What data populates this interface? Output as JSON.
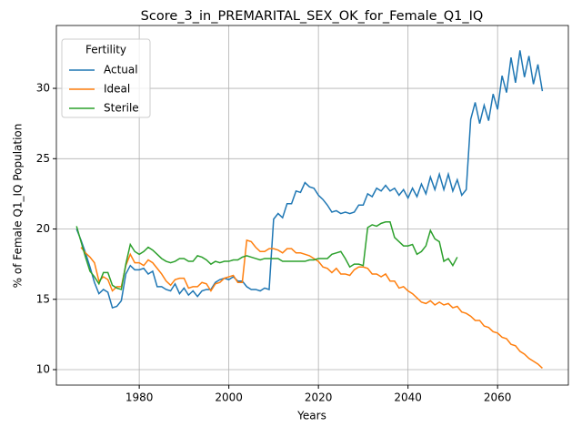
{
  "chart_data": {
    "type": "line",
    "title": "Score_3_in_PREMARITAL_SEX_OK_for_Female_Q1_IQ",
    "xlabel": "Years",
    "ylabel": "% of Female Q1_IQ Population",
    "x": [
      1966,
      1967,
      1968,
      1969,
      1970,
      1971,
      1972,
      1973,
      1974,
      1975,
      1976,
      1977,
      1978,
      1979,
      1980,
      1981,
      1982,
      1983,
      1984,
      1985,
      1986,
      1987,
      1988,
      1989,
      1990,
      1991,
      1992,
      1993,
      1994,
      1995,
      1996,
      1997,
      1998,
      1999,
      2000,
      2001,
      2002,
      2003,
      2004,
      2005,
      2006,
      2007,
      2008,
      2009,
      2010,
      2011,
      2012,
      2013,
      2014,
      2015,
      2016,
      2017,
      2018,
      2019,
      2020,
      2021,
      2022,
      2023,
      2024,
      2025,
      2026,
      2027,
      2028,
      2029,
      2030,
      2031,
      2032,
      2033,
      2034,
      2035,
      2036,
      2037,
      2038,
      2039,
      2040,
      2041,
      2042,
      2043,
      2044,
      2045,
      2046,
      2047,
      2048,
      2049,
      2050,
      2051,
      2052,
      2053,
      2054,
      2055,
      2056,
      2057,
      2058,
      2059,
      2060,
      2061,
      2062,
      2063,
      2064,
      2065,
      2066,
      2067,
      2068,
      2069,
      2070
    ],
    "series": [
      {
        "name": "Actual",
        "color": "#1f77b4",
        "values": [
          20.0,
          19.2,
          18.3,
          17.3,
          16.2,
          15.4,
          15.7,
          15.5,
          14.4,
          14.5,
          14.9,
          16.8,
          17.4,
          17.1,
          17.1,
          17.2,
          16.8,
          17.0,
          15.9,
          15.9,
          15.7,
          15.6,
          16.1,
          15.4,
          15.8,
          15.3,
          15.6,
          15.2,
          15.6,
          15.7,
          15.7,
          16.2,
          16.4,
          16.5,
          16.4,
          16.6,
          16.3,
          16.3,
          15.9,
          15.7,
          15.7,
          15.6,
          15.8,
          15.7,
          20.7,
          21.1,
          20.8,
          21.8,
          21.8,
          22.7,
          22.6,
          23.3,
          23.0,
          22.9,
          22.4,
          22.1,
          21.7,
          21.2,
          21.3,
          21.1,
          21.2,
          21.1,
          21.2,
          21.7,
          21.7,
          22.5,
          22.3,
          22.9,
          22.7,
          23.1,
          22.7,
          22.9,
          22.4,
          22.8,
          22.2,
          22.9,
          22.3,
          23.2,
          22.5,
          23.7,
          22.8,
          23.9,
          22.8,
          23.9,
          22.7,
          23.5,
          22.4,
          22.8,
          27.8,
          29.0,
          27.5,
          28.8,
          27.7,
          29.6,
          28.5,
          30.9,
          29.7,
          32.2,
          30.4,
          32.7,
          30.8,
          32.3,
          30.3,
          31.7,
          29.8
        ]
      },
      {
        "name": "Ideal",
        "color": "#ff7f0e",
        "values": [
          null,
          18.7,
          18.3,
          18.0,
          17.6,
          16.3,
          16.6,
          16.4,
          15.6,
          15.9,
          15.9,
          17.4,
          18.2,
          17.6,
          17.6,
          17.4,
          17.8,
          17.6,
          17.2,
          16.8,
          16.3,
          16.0,
          16.4,
          16.5,
          16.5,
          15.8,
          15.9,
          15.9,
          16.2,
          16.1,
          15.6,
          16.1,
          16.2,
          16.5,
          16.6,
          16.7,
          16.2,
          16.2,
          19.2,
          19.1,
          18.7,
          18.4,
          18.4,
          18.6,
          18.6,
          18.5,
          18.3,
          18.6,
          18.6,
          18.3,
          18.3,
          18.2,
          18.1,
          17.9,
          17.7,
          17.3,
          17.2,
          16.9,
          17.2,
          16.8,
          16.8,
          16.7,
          17.1,
          17.3,
          17.3,
          17.2,
          16.8,
          16.8,
          16.6,
          16.8,
          16.3,
          16.3,
          15.8,
          15.9,
          15.6,
          15.4,
          15.1,
          14.8,
          14.7,
          14.9,
          14.6,
          14.8,
          14.6,
          14.7,
          14.4,
          14.5,
          14.1,
          14.0,
          13.8,
          13.5,
          13.5,
          13.1,
          13.0,
          12.7,
          12.6,
          12.3,
          12.2,
          11.8,
          11.7,
          11.3,
          11.1,
          10.8,
          10.6,
          10.4,
          10.1
        ]
      },
      {
        "name": "Sterile",
        "color": "#2ca02c",
        "values": [
          20.2,
          19.1,
          18.0,
          17.0,
          16.6,
          16.1,
          16.9,
          16.9,
          16.0,
          15.8,
          15.7,
          17.5,
          18.9,
          18.4,
          18.2,
          18.4,
          18.7,
          18.5,
          18.2,
          17.9,
          17.7,
          17.6,
          17.7,
          17.9,
          17.9,
          17.7,
          17.7,
          18.1,
          18.0,
          17.8,
          17.5,
          17.7,
          17.6,
          17.7,
          17.7,
          17.8,
          17.8,
          18.0,
          18.1,
          18.0,
          17.9,
          17.8,
          17.9,
          17.9,
          17.9,
          17.9,
          17.7,
          17.7,
          17.7,
          17.7,
          17.7,
          17.7,
          17.8,
          17.8,
          17.9,
          17.9,
          17.9,
          18.2,
          18.3,
          18.4,
          17.9,
          17.3,
          17.5,
          17.5,
          17.4,
          20.1,
          20.3,
          20.2,
          20.4,
          20.5,
          20.5,
          19.4,
          19.1,
          18.8,
          18.8,
          18.9,
          18.2,
          18.4,
          18.8,
          19.9,
          19.3,
          19.1,
          17.7,
          17.9,
          17.4,
          18.0,
          null,
          null,
          null,
          null,
          null,
          null,
          null,
          null,
          null,
          null,
          null,
          null,
          null,
          null,
          null,
          null,
          null,
          null,
          null
        ]
      }
    ],
    "xlim": [
      1961.5,
      2075.8
    ],
    "xticks": [
      1980,
      2000,
      2020,
      2040,
      2060
    ],
    "ylim": [
      8.9,
      34.47
    ],
    "yticks": [
      10,
      15,
      20,
      25,
      30
    ],
    "grid": true,
    "legend_title": "Fertility",
    "legend_loc": "upper left"
  }
}
